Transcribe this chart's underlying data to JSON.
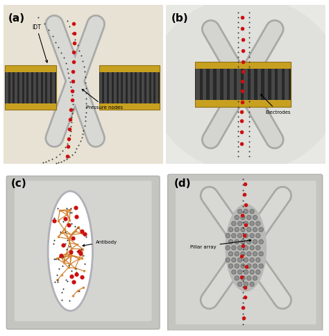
{
  "panel_labels": [
    "(a)",
    "(b)",
    "(c)",
    "(d)"
  ],
  "panel_label_fontsize": 10,
  "fig_bg": "#ffffff",
  "panel_a_bg": "#e8e2d4",
  "panel_b_bg": "#e8e8e4",
  "panel_b_oval_bg": "#ddddd8",
  "panel_cd_outer": "#c8c8c4",
  "panel_cd_inner": "#d8d8d4",
  "channel_fill": "#d0d0cc",
  "channel_edge": "#a8a8a4",
  "channel_lw_outer": 18,
  "channel_lw_inner": 14,
  "idt_gold": "#c8a020",
  "idt_dark": "#282828",
  "idt_finger": "#484848",
  "red": "#cc1010",
  "black_dot": "#202020",
  "pillar_fill": "#909090",
  "pillar_edge": "#606060",
  "antibody_line": "#cc7722",
  "antibody_node": "#dd8833",
  "arrow_color": "#101010",
  "label_fontsize": 5.5,
  "panel_a_angles": [
    70,
    110,
    250,
    290
  ],
  "panel_b_angles": [
    60,
    120,
    240,
    300
  ],
  "panel_d_angles": [
    55,
    125,
    235,
    305
  ]
}
